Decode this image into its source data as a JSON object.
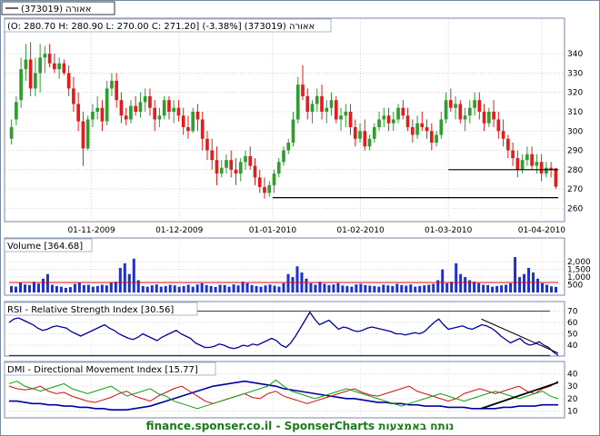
{
  "legend_top": "אאורה (373019)",
  "legend_color": "#000000",
  "ohlc_text": "(O: 280.70  H: 280.90  L: 270.00  C: 271.20] (-3.38%] (373019) אאורה",
  "panel_volume": "Volume [364.68]",
  "panel_rsi": "RSI - Relative Strength Index [30.56]",
  "panel_dmi": "DMI - Directional Movement Index [15.77]",
  "footer": "finance.sponser.co.il - SponserCharts נותח באמצעות",
  "colors": {
    "up": "#2e9e2e",
    "down": "#e01e1e",
    "blue": "#0000a0",
    "red": "#d01010",
    "green": "#10a010",
    "frame": "#7a8aa6"
  },
  "chart_data": [
    {
      "type": "candlestick",
      "x_tick_labels": [
        "01-11-2009",
        "01-12-2009",
        "01-01-2010",
        "01-02-2010",
        "01-03-2010",
        "01-04-2010"
      ],
      "y_ticks": [
        260,
        270,
        280,
        290,
        300,
        310,
        320,
        330,
        340
      ],
      "ylim": [
        255,
        349
      ],
      "grid": true,
      "candles": [
        [
          296,
          306,
          293,
          302
        ],
        [
          306,
          318,
          303,
          315
        ],
        [
          316,
          338,
          312,
          332
        ],
        [
          332,
          345,
          326,
          337
        ],
        [
          337,
          346,
          318,
          322
        ],
        [
          322,
          338,
          318,
          330
        ],
        [
          330,
          345,
          320,
          338
        ],
        [
          338,
          344,
          330,
          340
        ],
        [
          340,
          345,
          333,
          335
        ],
        [
          335,
          340,
          330,
          332
        ],
        [
          332,
          338,
          327,
          335
        ],
        [
          335,
          337,
          329,
          330
        ],
        [
          330,
          334,
          318,
          322
        ],
        [
          322,
          328,
          310,
          314
        ],
        [
          314,
          320,
          300,
          305
        ],
        [
          305,
          310,
          282,
          291
        ],
        [
          291,
          308,
          290,
          306
        ],
        [
          306,
          314,
          302,
          310
        ],
        [
          310,
          318,
          306,
          312
        ],
        [
          312,
          316,
          300,
          305
        ],
        [
          305,
          326,
          303,
          322
        ],
        [
          322,
          330,
          318,
          326
        ],
        [
          326,
          330,
          312,
          316
        ],
        [
          316,
          320,
          304,
          308
        ],
        [
          308,
          312,
          303,
          306
        ],
        [
          306,
          316,
          304,
          313
        ],
        [
          313,
          318,
          308,
          310
        ],
        [
          310,
          320,
          307,
          315
        ],
        [
          315,
          322,
          310,
          318
        ],
        [
          318,
          322,
          308,
          312
        ],
        [
          312,
          316,
          300,
          306
        ],
        [
          306,
          312,
          302,
          308
        ],
        [
          308,
          318,
          306,
          316
        ],
        [
          316,
          318,
          306,
          310
        ],
        [
          310,
          316,
          304,
          312
        ],
        [
          312,
          316,
          305,
          308
        ],
        [
          308,
          312,
          298,
          302
        ],
        [
          302,
          308,
          296,
          300
        ],
        [
          300,
          312,
          299,
          310
        ],
        [
          310,
          314,
          300,
          306
        ],
        [
          306,
          310,
          290,
          296
        ],
        [
          296,
          300,
          285,
          290
        ],
        [
          290,
          296,
          280,
          285
        ],
        [
          285,
          292,
          272,
          278
        ],
        [
          278,
          285,
          276,
          281
        ],
        [
          281,
          288,
          278,
          285
        ],
        [
          285,
          290,
          276,
          280
        ],
        [
          280,
          286,
          272,
          278
        ],
        [
          278,
          286,
          274,
          284
        ],
        [
          284,
          290,
          280,
          287
        ],
        [
          287,
          292,
          280,
          282
        ],
        [
          282,
          286,
          272,
          276
        ],
        [
          276,
          280,
          268,
          271
        ],
        [
          271,
          276,
          265,
          268
        ],
        [
          268,
          274,
          266,
          272
        ],
        [
          272,
          280,
          268,
          278
        ],
        [
          278,
          286,
          276,
          284
        ],
        [
          284,
          292,
          282,
          290
        ],
        [
          290,
          296,
          288,
          294
        ],
        [
          294,
          310,
          292,
          306
        ],
        [
          306,
          328,
          304,
          324
        ],
        [
          324,
          334,
          316,
          318
        ],
        [
          318,
          322,
          306,
          310
        ],
        [
          310,
          316,
          304,
          314
        ],
        [
          314,
          322,
          310,
          318
        ],
        [
          318,
          324,
          306,
          310
        ],
        [
          310,
          316,
          304,
          312
        ],
        [
          312,
          320,
          308,
          316
        ],
        [
          316,
          318,
          304,
          306
        ],
        [
          306,
          312,
          300,
          308
        ],
        [
          308,
          314,
          302,
          310
        ],
        [
          310,
          314,
          298,
          302
        ],
        [
          302,
          306,
          292,
          296
        ],
        [
          296,
          304,
          294,
          300
        ],
        [
          300,
          306,
          290,
          292
        ],
        [
          292,
          298,
          290,
          296
        ],
        [
          296,
          304,
          294,
          302
        ],
        [
          302,
          310,
          300,
          306
        ],
        [
          306,
          312,
          302,
          308
        ],
        [
          308,
          312,
          300,
          304
        ],
        [
          304,
          310,
          300,
          306
        ],
        [
          306,
          314,
          304,
          312
        ],
        [
          312,
          316,
          306,
          308
        ],
        [
          308,
          312,
          300,
          302
        ],
        [
          302,
          306,
          294,
          298
        ],
        [
          298,
          308,
          296,
          304
        ],
        [
          304,
          310,
          300,
          302
        ],
        [
          302,
          306,
          296,
          300
        ],
        [
          300,
          304,
          290,
          294
        ],
        [
          294,
          300,
          292,
          298
        ],
        [
          298,
          310,
          296,
          306
        ],
        [
          306,
          320,
          304,
          316
        ],
        [
          316,
          322,
          310,
          312
        ],
        [
          312,
          318,
          306,
          314
        ],
        [
          314,
          316,
          304,
          306
        ],
        [
          306,
          312,
          300,
          308
        ],
        [
          308,
          316,
          304,
          312
        ],
        [
          312,
          320,
          308,
          316
        ],
        [
          316,
          320,
          306,
          310
        ],
        [
          310,
          314,
          300,
          304
        ],
        [
          304,
          312,
          302,
          310
        ],
        [
          310,
          316,
          302,
          306
        ],
        [
          306,
          310,
          296,
          300
        ],
        [
          300,
          306,
          292,
          296
        ],
        [
          296,
          298,
          286,
          290
        ],
        [
          290,
          294,
          282,
          286
        ],
        [
          286,
          290,
          276,
          280
        ],
        [
          280,
          288,
          278,
          285
        ],
        [
          285,
          292,
          282,
          288
        ],
        [
          288,
          292,
          280,
          282
        ],
        [
          282,
          288,
          278,
          284
        ],
        [
          284,
          288,
          274,
          278
        ],
        [
          278,
          284,
          276,
          281
        ],
        [
          281,
          284,
          276,
          280
        ],
        [
          280.7,
          280.9,
          270,
          271.2
        ]
      ],
      "hlines": [
        {
          "y": 265.5,
          "from": "01-01-2010",
          "to": "end"
        },
        {
          "y": 280,
          "from": "01-03-2010",
          "to": "end"
        }
      ]
    },
    {
      "type": "bar",
      "name": "Volume",
      "y_tick_labels": [
        "2,000",
        "1,500",
        "1,000",
        "500"
      ],
      "y_ticks": [
        2000,
        1500,
        1000,
        500
      ],
      "ylim": [
        0,
        2600
      ],
      "values": [
        420,
        380,
        650,
        520,
        480,
        700,
        580,
        900,
        1200,
        500,
        420,
        380,
        300,
        350,
        560,
        620,
        480,
        500,
        380,
        420,
        500,
        460,
        650,
        700,
        1600,
        1900,
        1200,
        2200,
        800,
        420,
        380,
        460,
        520,
        380,
        420,
        500,
        460,
        380,
        420,
        500,
        380,
        520,
        600,
        480,
        420,
        360,
        500,
        480,
        380,
        520,
        460,
        700,
        600,
        480,
        420,
        380,
        460,
        520,
        440,
        380,
        600,
        1200,
        1000,
        1700,
        1300,
        900,
        600,
        500,
        700,
        560,
        480,
        520,
        600,
        450,
        420,
        380,
        520,
        560,
        480,
        440,
        420,
        380,
        500,
        460,
        420,
        560,
        480,
        440,
        520,
        380,
        420,
        460,
        500,
        560,
        800,
        1500,
        600,
        700,
        1900,
        1200,
        1000,
        800,
        700,
        600,
        500,
        480,
        380,
        420,
        460,
        500,
        600,
        2300,
        1000,
        1200,
        1600,
        1300,
        900,
        600,
        500,
        400,
        365
      ],
      "ma": 650
    },
    {
      "type": "line",
      "name": "RSI",
      "y_ticks": [
        70,
        60,
        50,
        40
      ],
      "ylim": [
        32,
        72
      ],
      "values": [
        60,
        63,
        64,
        62,
        60,
        58,
        55,
        53,
        54,
        56,
        57,
        56,
        55,
        52,
        50,
        48,
        50,
        52,
        54,
        56,
        58,
        55,
        53,
        50,
        48,
        46,
        45,
        47,
        50,
        48,
        46,
        44,
        47,
        49,
        51,
        53,
        50,
        48,
        46,
        42,
        40,
        38,
        38,
        39,
        41,
        40,
        38,
        37,
        38,
        40,
        39,
        41,
        40,
        42,
        44,
        46,
        44,
        40,
        38,
        42,
        48,
        55,
        62,
        69,
        63,
        58,
        60,
        62,
        58,
        54,
        56,
        55,
        53,
        52,
        53,
        55,
        56,
        55,
        54,
        53,
        52,
        50,
        50,
        49,
        50,
        51,
        50,
        52,
        56,
        60,
        63,
        58,
        54,
        55,
        56,
        57,
        55,
        54,
        56,
        58,
        57,
        55,
        52,
        48,
        45,
        42,
        44,
        46,
        42,
        40,
        41,
        43,
        40,
        38,
        34,
        31
      ],
      "trend": [
        [
          0.86,
          63
        ],
        [
          1.0,
          33
        ]
      ]
    },
    {
      "type": "line",
      "name": "DMI",
      "y_ticks": [
        40,
        30,
        20,
        10
      ],
      "ylim": [
        6,
        44
      ],
      "series": [
        {
          "color": "#0000a0",
          "values": [
            18,
            18,
            17,
            16,
            16,
            15,
            15,
            14,
            14,
            13,
            13,
            12,
            12,
            11,
            11,
            11,
            12,
            13,
            14,
            16,
            18,
            20,
            22,
            24,
            26,
            28,
            30,
            31,
            32,
            33,
            34,
            33,
            32,
            31,
            30,
            28,
            27,
            26,
            25,
            24,
            23,
            22,
            21,
            20,
            20,
            19,
            18,
            17,
            17,
            16,
            16,
            15,
            15,
            14,
            14,
            14,
            13,
            13,
            13,
            12,
            12,
            12,
            12,
            13,
            13,
            14,
            14,
            14,
            15,
            15,
            15
          ]
        },
        {
          "color": "#d01010",
          "values": [
            30,
            28,
            27,
            28,
            30,
            26,
            24,
            25,
            22,
            20,
            18,
            17,
            19,
            21,
            24,
            26,
            22,
            20,
            18,
            22,
            25,
            28,
            30,
            26,
            22,
            18,
            16,
            18,
            20,
            22,
            24,
            21,
            20,
            24,
            26,
            22,
            20,
            18,
            16,
            18,
            20,
            22,
            24,
            26,
            28,
            25,
            23,
            22,
            24,
            26,
            28,
            30,
            26,
            24,
            22,
            20,
            18,
            20,
            24,
            26,
            28,
            26,
            24,
            26,
            28,
            30,
            26,
            24,
            28,
            30,
            34
          ]
        },
        {
          "color": "#10a010",
          "values": [
            32,
            34,
            30,
            28,
            26,
            28,
            30,
            32,
            28,
            26,
            24,
            26,
            28,
            30,
            26,
            22,
            24,
            26,
            28,
            24,
            22,
            18,
            16,
            14,
            12,
            14,
            16,
            18,
            20,
            22,
            24,
            26,
            28,
            30,
            35,
            30,
            26,
            24,
            22,
            20,
            22,
            24,
            26,
            28,
            26,
            24,
            22,
            20,
            18,
            16,
            14,
            16,
            18,
            20,
            22,
            24,
            22,
            20,
            18,
            20,
            22,
            24,
            26,
            24,
            22,
            20,
            22,
            24,
            26,
            22,
            20
          ]
        }
      ],
      "trend": [
        [
          0.86,
          12
        ],
        [
          1.0,
          33
        ]
      ]
    }
  ]
}
